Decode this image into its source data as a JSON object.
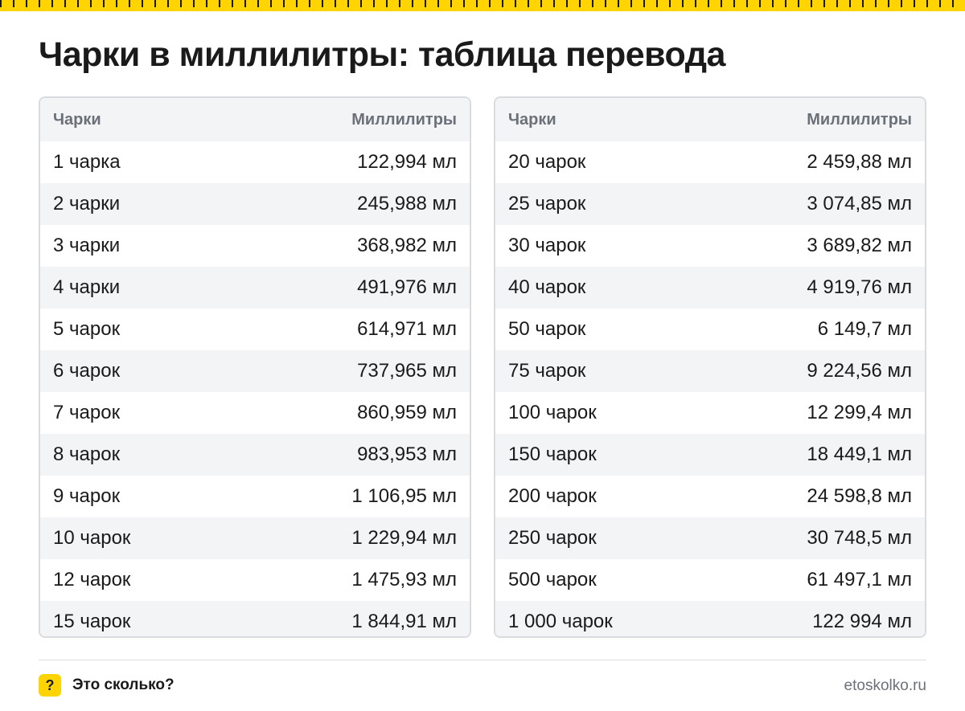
{
  "title": "Чарки в миллилитры: таблица перевода",
  "table_left": {
    "col1": "Чарки",
    "col2": "Миллилитры",
    "rows": [
      [
        "1 чарка",
        "122,994 мл"
      ],
      [
        "2 чарки",
        "245,988 мл"
      ],
      [
        "3 чарки",
        "368,982 мл"
      ],
      [
        "4 чарки",
        "491,976 мл"
      ],
      [
        "5 чарок",
        "614,971 мл"
      ],
      [
        "6 чарок",
        "737,965 мл"
      ],
      [
        "7 чарок",
        "860,959 мл"
      ],
      [
        "8 чарок",
        "983,953 мл"
      ],
      [
        "9 чарок",
        "1 106,95 мл"
      ],
      [
        "10 чарок",
        "1 229,94 мл"
      ],
      [
        "12 чарок",
        "1 475,93 мл"
      ],
      [
        "15 чарок",
        "1 844,91 мл"
      ]
    ]
  },
  "table_right": {
    "col1": "Чарки",
    "col2": "Миллилитры",
    "rows": [
      [
        "20 чарок",
        "2 459,88 мл"
      ],
      [
        "25 чарок",
        "3 074,85 мл"
      ],
      [
        "30 чарок",
        "3 689,82 мл"
      ],
      [
        "40 чарок",
        "4 919,76 мл"
      ],
      [
        "50 чарок",
        "6 149,7 мл"
      ],
      [
        "75 чарок",
        "9 224,56 мл"
      ],
      [
        "100 чарок",
        "12 299,4 мл"
      ],
      [
        "150 чарок",
        "18 449,1 мл"
      ],
      [
        "200 чарок",
        "24 598,8 мл"
      ],
      [
        "250 чарок",
        "30 748,5 мл"
      ],
      [
        "500 чарок",
        "61 497,1 мл"
      ],
      [
        "1 000 чарок",
        "122 994 мл"
      ]
    ]
  },
  "footer": {
    "badge": "?",
    "brand": "Это сколько?",
    "site": "etoskolko.ru"
  },
  "colors": {
    "accent": "#ffd400",
    "stripe": "#f3f4f6",
    "header_text": "#6b7079",
    "border": "#d9dbdf"
  },
  "icons": {
    "ruler": "ruler-ticks",
    "badge": "question-mark-icon"
  }
}
